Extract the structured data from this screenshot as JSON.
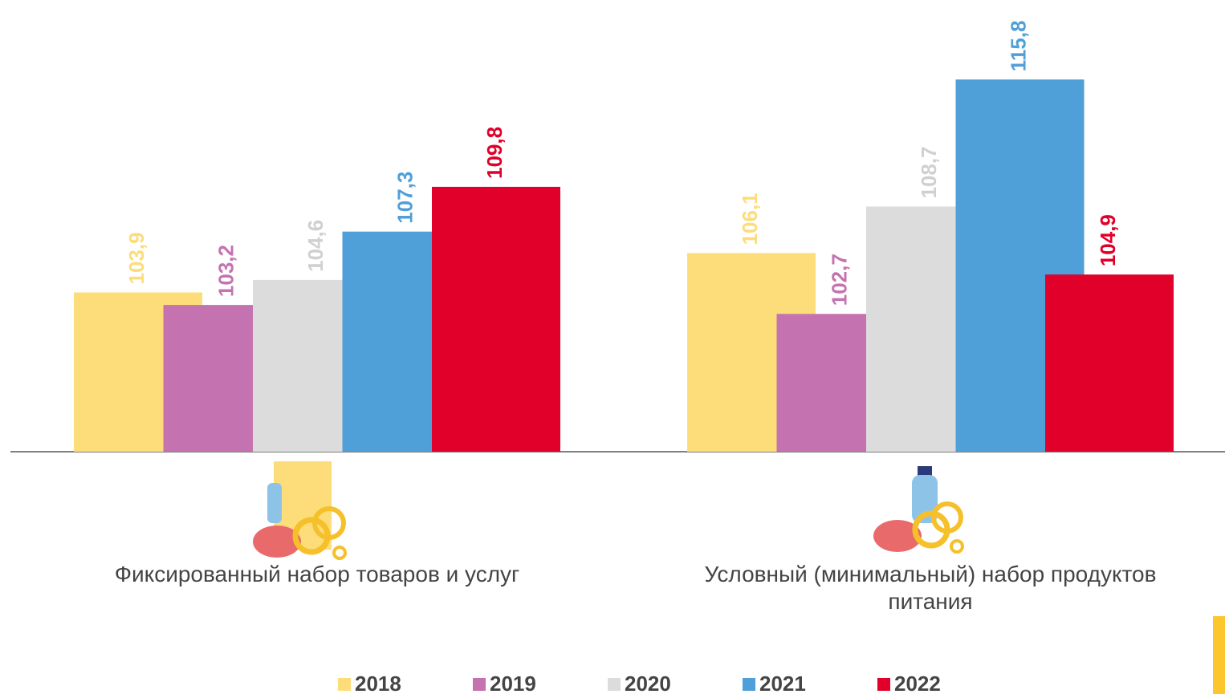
{
  "chart_data": {
    "type": "bar",
    "categories": [
      "Фиксированный набор товаров и услуг",
      "Условный (минимальный) набор продуктов питания"
    ],
    "series": [
      {
        "name": "2018",
        "color": "#fddc7a",
        "values": [
          103.9,
          106.1
        ],
        "value_labels": [
          "103,9",
          "106,1"
        ]
      },
      {
        "name": "2019",
        "color": "#c473b0",
        "values": [
          103.2,
          102.7
        ],
        "value_labels": [
          "103,2",
          "102,7"
        ]
      },
      {
        "name": "2020",
        "color": "#dcdcdc",
        "values": [
          104.6,
          108.7
        ],
        "value_labels": [
          "104,6",
          "108,7"
        ]
      },
      {
        "name": "2021",
        "color": "#4f9fd8",
        "values": [
          107.3,
          115.8
        ],
        "value_labels": [
          "107,3",
          "115,8"
        ]
      },
      {
        "name": "2022",
        "color": "#e0002a",
        "values": [
          109.8,
          104.9
        ],
        "value_labels": [
          "109,8",
          "104,9"
        ]
      }
    ],
    "ylim": [
      95,
      118
    ]
  }
}
